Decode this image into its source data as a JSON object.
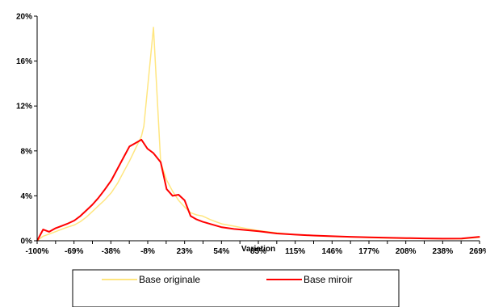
{
  "chart_data": {
    "type": "line",
    "xlabel": "Variation",
    "ylabel": "",
    "y_ticks": [
      "0%",
      "4%",
      "8%",
      "12%",
      "16%",
      "20%"
    ],
    "ylim": [
      0,
      20
    ],
    "x_tick_labels": [
      "-100%",
      "-69%",
      "-38%",
      "-8%",
      "23%",
      "54%",
      "85%",
      "115%",
      "146%",
      "177%",
      "208%",
      "238%",
      "269%"
    ],
    "xlim": [
      -100,
      269
    ],
    "grid": false,
    "legend_position": "bottom",
    "series": [
      {
        "name": "Base originale",
        "color": "#FFE680",
        "points": [
          [
            -100,
            0.0
          ],
          [
            -95,
            0.4
          ],
          [
            -90,
            0.6
          ],
          [
            -85,
            0.8
          ],
          [
            -80,
            1.0
          ],
          [
            -75,
            1.2
          ],
          [
            -69,
            1.4
          ],
          [
            -64,
            1.7
          ],
          [
            -59,
            2.1
          ],
          [
            -54,
            2.6
          ],
          [
            -49,
            3.1
          ],
          [
            -44,
            3.6
          ],
          [
            -38,
            4.3
          ],
          [
            -33,
            5.1
          ],
          [
            -28,
            6.1
          ],
          [
            -23,
            7.1
          ],
          [
            -18,
            8.2
          ],
          [
            -13,
            9.3
          ],
          [
            -11,
            10.2
          ],
          [
            -3,
            19.0
          ],
          [
            3,
            7.0
          ],
          [
            8,
            5.4
          ],
          [
            13,
            4.4
          ],
          [
            18,
            3.6
          ],
          [
            23,
            3.0
          ],
          [
            28,
            2.5
          ],
          [
            33,
            2.3
          ],
          [
            38,
            2.2
          ],
          [
            44,
            1.9
          ],
          [
            49,
            1.7
          ],
          [
            54,
            1.5
          ],
          [
            64,
            1.3
          ],
          [
            74,
            1.1
          ],
          [
            85,
            0.9
          ],
          [
            100,
            0.7
          ],
          [
            115,
            0.55
          ],
          [
            130,
            0.45
          ],
          [
            146,
            0.38
          ],
          [
            161,
            0.33
          ],
          [
            177,
            0.28
          ],
          [
            192,
            0.24
          ],
          [
            208,
            0.21
          ],
          [
            223,
            0.19
          ],
          [
            238,
            0.17
          ],
          [
            254,
            0.16
          ],
          [
            269,
            0.3
          ]
        ]
      },
      {
        "name": "Base miroir",
        "color": "#FF0000",
        "points": [
          [
            -100,
            0.0
          ],
          [
            -95,
            1.0
          ],
          [
            -90,
            0.8
          ],
          [
            -85,
            1.1
          ],
          [
            -80,
            1.3
          ],
          [
            -75,
            1.5
          ],
          [
            -69,
            1.8
          ],
          [
            -64,
            2.2
          ],
          [
            -59,
            2.7
          ],
          [
            -54,
            3.2
          ],
          [
            -49,
            3.8
          ],
          [
            -44,
            4.5
          ],
          [
            -38,
            5.4
          ],
          [
            -33,
            6.4
          ],
          [
            -28,
            7.4
          ],
          [
            -23,
            8.4
          ],
          [
            -18,
            8.7
          ],
          [
            -13,
            9.0
          ],
          [
            -8,
            8.2
          ],
          [
            -3,
            7.8
          ],
          [
            3,
            7.0
          ],
          [
            8,
            4.6
          ],
          [
            13,
            4.0
          ],
          [
            18,
            4.1
          ],
          [
            23,
            3.6
          ],
          [
            28,
            2.2
          ],
          [
            33,
            1.9
          ],
          [
            38,
            1.7
          ],
          [
            44,
            1.5
          ],
          [
            49,
            1.35
          ],
          [
            54,
            1.2
          ],
          [
            64,
            1.05
          ],
          [
            74,
            0.95
          ],
          [
            85,
            0.85
          ],
          [
            100,
            0.65
          ],
          [
            115,
            0.55
          ],
          [
            130,
            0.47
          ],
          [
            146,
            0.4
          ],
          [
            161,
            0.35
          ],
          [
            177,
            0.3
          ],
          [
            192,
            0.27
          ],
          [
            208,
            0.24
          ],
          [
            223,
            0.21
          ],
          [
            238,
            0.19
          ],
          [
            254,
            0.2
          ],
          [
            269,
            0.35
          ]
        ]
      }
    ]
  }
}
